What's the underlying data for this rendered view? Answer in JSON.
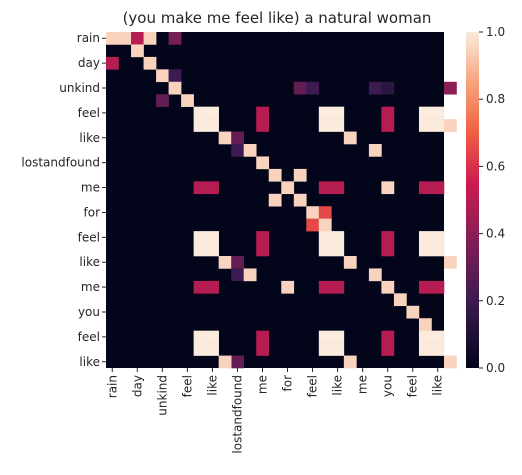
{
  "chart_data": {
    "type": "heatmap",
    "title": "(you make me feel like) a natural woman",
    "labels": [
      "rain",
      "",
      "day",
      "",
      "unkind",
      "",
      "feel",
      "",
      "like",
      "",
      "lostandfound",
      "",
      "me",
      "",
      "for",
      "",
      "feel",
      "",
      "like",
      "",
      "me",
      "",
      "you",
      "",
      "feel",
      "",
      "like"
    ],
    "tick_labels": [
      "rain",
      "day",
      "unkind",
      "feel",
      "like",
      "lostandfound",
      "me",
      "for",
      "feel",
      "like",
      "me",
      "you",
      "feel",
      "like"
    ],
    "colorbar": {
      "min": 0.0,
      "max": 1.0,
      "ticks": [
        "0.0",
        "0.2",
        "0.4",
        "0.6",
        "0.8",
        "1.0"
      ]
    },
    "cells": [
      [
        0,
        0,
        0.95
      ],
      [
        0,
        1,
        0.95
      ],
      [
        0,
        2,
        0.5
      ],
      [
        0,
        3,
        0.95
      ],
      [
        0,
        5,
        0.35
      ],
      [
        1,
        2,
        0.95
      ],
      [
        2,
        0,
        0.5
      ],
      [
        2,
        3,
        0.95
      ],
      [
        3,
        4,
        0.95
      ],
      [
        3,
        5,
        0.2
      ],
      [
        4,
        5,
        0.95
      ],
      [
        4,
        15,
        0.3
      ],
      [
        4,
        16,
        0.2
      ],
      [
        4,
        21,
        0.2
      ],
      [
        4,
        22,
        0.15
      ],
      [
        4,
        27,
        0.4
      ],
      [
        5,
        4,
        0.3
      ],
      [
        5,
        6,
        0.95
      ],
      [
        6,
        7,
        1.0
      ],
      [
        6,
        8,
        1.0
      ],
      [
        7,
        7,
        1.0
      ],
      [
        7,
        8,
        1.0
      ],
      [
        6,
        12,
        0.5
      ],
      [
        7,
        12,
        0.5
      ],
      [
        6,
        17,
        1.0
      ],
      [
        6,
        18,
        1.0
      ],
      [
        7,
        17,
        1.0
      ],
      [
        7,
        18,
        1.0
      ],
      [
        6,
        22,
        0.5
      ],
      [
        7,
        22,
        0.5
      ],
      [
        6,
        25,
        1.0
      ],
      [
        6,
        26,
        1.0
      ],
      [
        7,
        25,
        1.0
      ],
      [
        7,
        26,
        1.0
      ],
      [
        7,
        27,
        0.95
      ],
      [
        8,
        9,
        0.95
      ],
      [
        8,
        10,
        0.3
      ],
      [
        8,
        19,
        0.95
      ],
      [
        9,
        10,
        0.2
      ],
      [
        9,
        11,
        0.95
      ],
      [
        9,
        21,
        0.95
      ],
      [
        10,
        12,
        0.95
      ],
      [
        11,
        13,
        0.95
      ],
      [
        11,
        15,
        0.95
      ],
      [
        12,
        7,
        0.5
      ],
      [
        12,
        8,
        0.5
      ],
      [
        12,
        14,
        0.95
      ],
      [
        12,
        17,
        0.5
      ],
      [
        12,
        18,
        0.5
      ],
      [
        12,
        22,
        0.95
      ],
      [
        12,
        25,
        0.5
      ],
      [
        12,
        26,
        0.5
      ],
      [
        13,
        13,
        0.95
      ],
      [
        13,
        15,
        0.95
      ],
      [
        14,
        16,
        0.95
      ],
      [
        14,
        17,
        0.65
      ],
      [
        15,
        16,
        0.65
      ],
      [
        15,
        17,
        0.95
      ],
      [
        16,
        7,
        1.0
      ],
      [
        16,
        8,
        1.0
      ],
      [
        17,
        7,
        1.0
      ],
      [
        17,
        8,
        1.0
      ],
      [
        16,
        12,
        0.5
      ],
      [
        17,
        12,
        0.5
      ],
      [
        16,
        17,
        1.0
      ],
      [
        16,
        18,
        1.0
      ],
      [
        17,
        17,
        1.0
      ],
      [
        17,
        18,
        1.0
      ],
      [
        16,
        22,
        0.5
      ],
      [
        17,
        22,
        0.5
      ],
      [
        16,
        25,
        1.0
      ],
      [
        16,
        26,
        1.0
      ],
      [
        17,
        25,
        1.0
      ],
      [
        17,
        26,
        1.0
      ],
      [
        18,
        9,
        0.95
      ],
      [
        18,
        10,
        0.3
      ],
      [
        18,
        19,
        0.95
      ],
      [
        18,
        27,
        0.95
      ],
      [
        19,
        10,
        0.2
      ],
      [
        19,
        11,
        0.95
      ],
      [
        19,
        21,
        0.95
      ],
      [
        20,
        7,
        0.5
      ],
      [
        20,
        8,
        0.5
      ],
      [
        20,
        14,
        0.95
      ],
      [
        20,
        17,
        0.5
      ],
      [
        20,
        18,
        0.5
      ],
      [
        20,
        22,
        0.95
      ],
      [
        20,
        25,
        0.5
      ],
      [
        20,
        26,
        0.5
      ],
      [
        21,
        23,
        0.95
      ],
      [
        22,
        24,
        0.95
      ],
      [
        23,
        25,
        0.95
      ],
      [
        24,
        7,
        1.0
      ],
      [
        24,
        8,
        1.0
      ],
      [
        25,
        7,
        1.0
      ],
      [
        25,
        8,
        1.0
      ],
      [
        24,
        12,
        0.5
      ],
      [
        25,
        12,
        0.5
      ],
      [
        24,
        17,
        1.0
      ],
      [
        24,
        18,
        1.0
      ],
      [
        25,
        17,
        1.0
      ],
      [
        25,
        18,
        1.0
      ],
      [
        24,
        22,
        0.5
      ],
      [
        25,
        22,
        0.5
      ],
      [
        24,
        25,
        1.0
      ],
      [
        24,
        26,
        1.0
      ],
      [
        25,
        25,
        1.0
      ],
      [
        25,
        26,
        1.0
      ],
      [
        26,
        10,
        0.3
      ],
      [
        26,
        9,
        0.95
      ],
      [
        26,
        19,
        0.95
      ],
      [
        26,
        27,
        0.95
      ]
    ]
  }
}
